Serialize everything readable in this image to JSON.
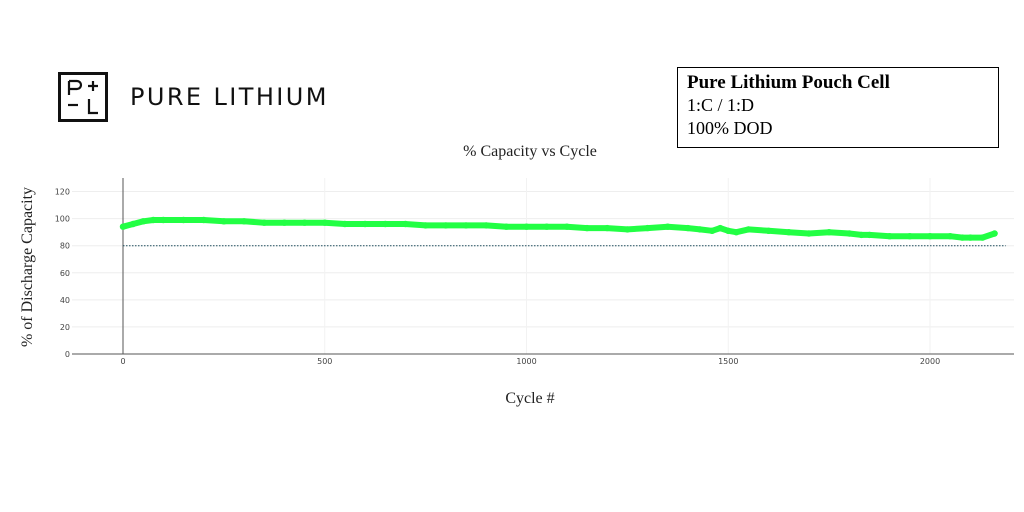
{
  "brand": {
    "mark_top": "P+",
    "mark_bottom": "−L",
    "name": "PURE LITHIUM"
  },
  "info": {
    "title": "Pure Lithium Pouch Cell",
    "rate": "1:C / 1:D",
    "dod": "100% DOD"
  },
  "chart_data": {
    "type": "scatter",
    "title": "% Capacity vs Cycle",
    "xlabel": "Cycle #",
    "ylabel": "% of Discharge  Capacity",
    "xlim": [
      -120,
      2200
    ],
    "ylim": [
      0,
      130
    ],
    "xticks": [
      0,
      500,
      1000,
      1500,
      2000
    ],
    "yticks": [
      0,
      20,
      40,
      60,
      80,
      100,
      120
    ],
    "grid": true,
    "reference_line": {
      "y": 80,
      "style": "dotted",
      "color": "#1f4e5f"
    },
    "series_color": "#22ff44",
    "x": [
      0,
      25,
      50,
      75,
      100,
      150,
      200,
      250,
      300,
      350,
      400,
      450,
      500,
      550,
      600,
      650,
      700,
      750,
      800,
      850,
      900,
      950,
      1000,
      1050,
      1100,
      1150,
      1200,
      1250,
      1300,
      1350,
      1400,
      1430,
      1460,
      1480,
      1500,
      1520,
      1550,
      1600,
      1650,
      1700,
      1750,
      1800,
      1830,
      1850,
      1900,
      1950,
      2000,
      2050,
      2080,
      2100,
      2130,
      2160
    ],
    "values": [
      94,
      96,
      98,
      99,
      99,
      99,
      99,
      98,
      98,
      97,
      97,
      97,
      97,
      96,
      96,
      96,
      96,
      95,
      95,
      95,
      95,
      94,
      94,
      94,
      94,
      93,
      93,
      92,
      93,
      94,
      93,
      92,
      91,
      93,
      91,
      90,
      92,
      91,
      90,
      89,
      90,
      89,
      88,
      88,
      87,
      87,
      87,
      87,
      86,
      86,
      86,
      89
    ]
  }
}
